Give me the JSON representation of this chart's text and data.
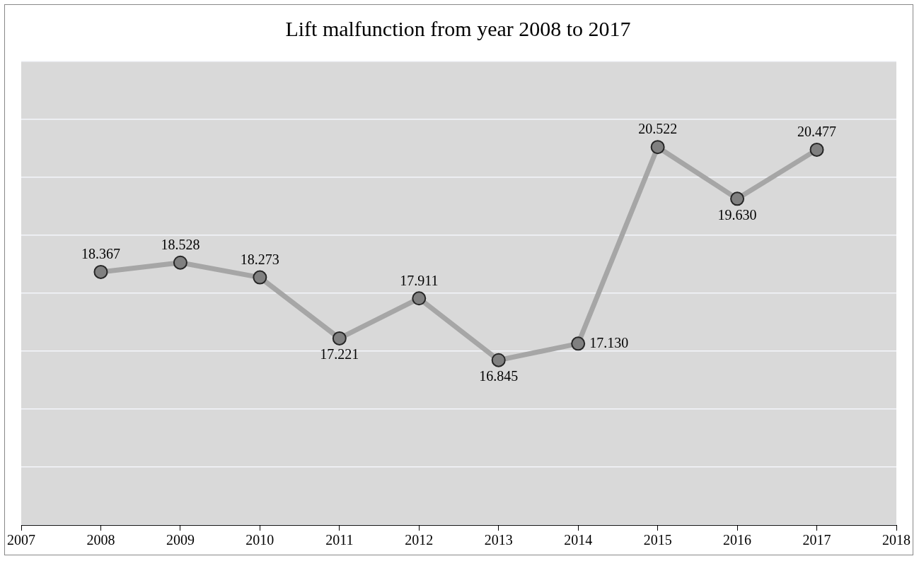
{
  "chart_data": {
    "type": "line",
    "title": "Lift malfunction from year 2008 to 2017",
    "x": [
      2008,
      2009,
      2010,
      2011,
      2012,
      2013,
      2014,
      2015,
      2016,
      2017
    ],
    "series": [
      {
        "color": "#a6a6a6",
        "values": [
          18.367,
          18.528,
          18.273,
          17.221,
          17.911,
          16.845,
          17.13,
          20.522,
          19.63,
          20.477
        ],
        "value_labels": [
          "18.367",
          "18.528",
          "18.273",
          "17.221",
          "17.911",
          "16.845",
          "17.130",
          "20.522",
          "19.630",
          "20.477"
        ]
      }
    ],
    "xlim": [
      2007,
      2018
    ],
    "xticks": [
      2007,
      2008,
      2009,
      2010,
      2011,
      2012,
      2013,
      2014,
      2015,
      2016,
      2017,
      2018
    ],
    "ylim": [
      14,
      22
    ],
    "yticks": [
      {
        "value": 14,
        "label": null
      },
      {
        "value": 15,
        "label": null
      },
      {
        "value": 16,
        "label": null
      },
      {
        "value": 17,
        "label": null
      },
      {
        "value": 18,
        "label": null
      },
      {
        "value": 19,
        "label": null
      },
      {
        "value": 20,
        "label": null
      },
      {
        "value": 21,
        "label": null
      },
      {
        "value": 22,
        "label": null
      }
    ],
    "grid": "y",
    "legend": false,
    "tick_labels": "x",
    "marker": "circle",
    "line_style": "solid"
  }
}
